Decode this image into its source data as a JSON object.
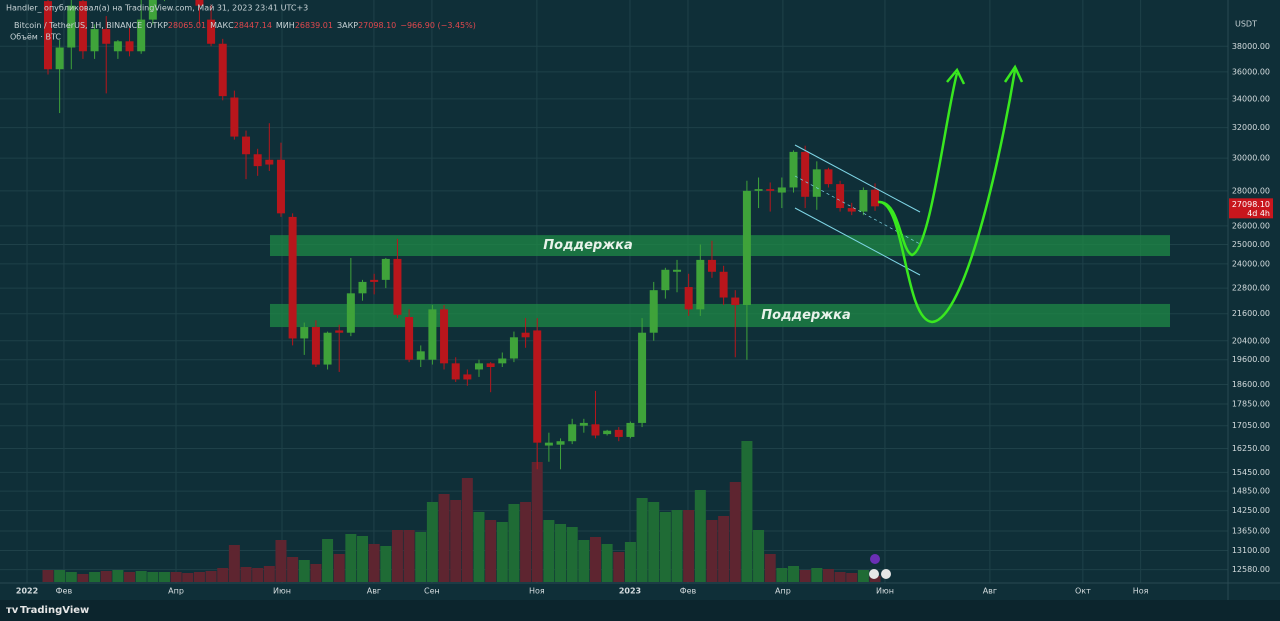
{
  "header": {
    "publisher": "Handler_ опубликовал(а) на TradingView.com, Май 31, 2023 23:41 UTC+3",
    "brand": "TradingView"
  },
  "chart_data": {
    "type": "candlestick",
    "symbol": "Bitcoin / TetherUS, 1Н, BINANCE",
    "ohlc_labels": [
      "ОТКР",
      "МАКС",
      "МИН",
      "ЗАКР"
    ],
    "change": "−966.90 (−3.45%)",
    "volume_label": "Объём · BTC",
    "currency": "USDT",
    "last_close_label": "27098.10",
    "countdown": "4d 4h",
    "log_scale": true,
    "grid": true,
    "up_color": "#3fa33a",
    "down_color": "#b8161c",
    "volume_up_color": "#1f6b35",
    "volume_down_color": "#5e2530",
    "zone_color": "#1f8a46",
    "categories": [
      null,
      null,
      null,
      null,
      null,
      null,
      null,
      null,
      null,
      null,
      null,
      null,
      null,
      null,
      null,
      null,
      null,
      null,
      null,
      null,
      null,
      null,
      null,
      null,
      null,
      null,
      null,
      null,
      null,
      null,
      null,
      null,
      null,
      null,
      null,
      null,
      null,
      null,
      null,
      null,
      null,
      null,
      null,
      null,
      null,
      null,
      null,
      null,
      null,
      null,
      null,
      null,
      null,
      null,
      null,
      null,
      null,
      null,
      null,
      null,
      null,
      null,
      null,
      null,
      null,
      null,
      null,
      null,
      null,
      null,
      null,
      null
    ],
    "open": [
      41800,
      36200,
      37900,
      41800,
      37600,
      39400,
      37600,
      38400,
      37600,
      40200,
      42200,
      46800,
      45600,
      42100,
      40200,
      38200,
      34100,
      31400,
      30250,
      29900,
      29900,
      26500,
      20500,
      21000,
      19400,
      20850,
      20750,
      22550,
      23200,
      23200,
      24250,
      21450,
      19600,
      19600,
      21800,
      19450,
      19000,
      19200,
      19450,
      19450,
      19650,
      20750,
      20850,
      16350,
      16380,
      16500,
      17050,
      17100,
      16750,
      16900,
      16650,
      17150,
      20750,
      22700,
      23600,
      22850,
      21800,
      24200,
      23600,
      22350,
      22000,
      28000,
      28100,
      27900,
      28200,
      30400,
      27650,
      29300,
      28400,
      27000,
      26800,
      28065.01
    ],
    "high": [
      41900,
      38500,
      41900,
      41900,
      39800,
      40500,
      38500,
      39500,
      41900,
      42800,
      47500,
      48000,
      46000,
      43000,
      41500,
      38600,
      34600,
      31800,
      30600,
      32300,
      31000,
      26700,
      21200,
      21300,
      20800,
      21100,
      24300,
      23200,
      23500,
      24300,
      25300,
      21800,
      20200,
      22000,
      22000,
      19700,
      19200,
      19600,
      19500,
      19900,
      20800,
      21400,
      21400,
      16800,
      16600,
      17300,
      17300,
      18350,
      16900,
      17000,
      17200,
      21400,
      23100,
      23800,
      24200,
      23500,
      25000,
      25200,
      23900,
      22700,
      28600,
      28800,
      28500,
      28800,
      30500,
      30800,
      29800,
      29400,
      28600,
      27300,
      28200,
      28447.14
    ],
    "low": [
      35800,
      33000,
      36200,
      37000,
      37000,
      34400,
      37000,
      37200,
      37400,
      39800,
      41800,
      45000,
      42000,
      39800,
      38000,
      33900,
      31200,
      28700,
      28900,
      29200,
      26500,
      20200,
      19800,
      19300,
      19200,
      19100,
      20600,
      22200,
      22500,
      22800,
      21400,
      19500,
      19300,
      19400,
      19200,
      18700,
      18550,
      18900,
      18300,
      19300,
      19500,
      20100,
      15550,
      15800,
      15550,
      16400,
      16800,
      16600,
      16700,
      16500,
      16600,
      17000,
      20400,
      22300,
      22600,
      21500,
      21500,
      23300,
      22000,
      19700,
      19600,
      27000,
      26800,
      27000,
      27900,
      27000,
      26900,
      28200,
      26800,
      26600,
      26600,
      26839.01
    ],
    "close": [
      36200,
      37900,
      41400,
      37600,
      39400,
      38200,
      38400,
      37600,
      40200,
      42200,
      46800,
      45600,
      42100,
      41400,
      38200,
      34200,
      31400,
      30250,
      29500,
      29600,
      26700,
      20500,
      21000,
      19400,
      20750,
      20750,
      22550,
      23100,
      23100,
      24250,
      21550,
      19600,
      19950,
      21800,
      19450,
      18800,
      18800,
      19450,
      19300,
      19650,
      20550,
      20550,
      16450,
      16450,
      16500,
      17100,
      17150,
      16700,
      16870,
      16650,
      17150,
      20750,
      22700,
      23700,
      23700,
      21800,
      24200,
      23600,
      22350,
      22000,
      28000,
      28100,
      28000,
      28200,
      30400,
      27650,
      29300,
      28400,
      27000,
      26800,
      28050,
      27098.1
    ],
    "volume": [
      120000,
      120000,
      100000,
      80000,
      100000,
      110000,
      120000,
      100000,
      110000,
      100000,
      100000,
      100000,
      90000,
      100000,
      110000,
      140000,
      370000,
      150000,
      140000,
      160000,
      420000,
      250000,
      220000,
      180000,
      430000,
      280000,
      480000,
      460000,
      380000,
      360000,
      520000,
      520000,
      500000,
      800000,
      880000,
      820000,
      1040000,
      700000,
      620000,
      600000,
      780000,
      800000,
      1200000,
      620000,
      580000,
      550000,
      420000,
      450000,
      380000,
      300000,
      400000,
      840000,
      800000,
      700000,
      720000,
      720000,
      920000,
      620000,
      660000,
      1000000,
      1410000,
      520000,
      280000,
      140000,
      160000,
      120000,
      140000,
      130000,
      100000,
      90000,
      120000,
      60000
    ],
    "zones": [
      {
        "label": "Поддержка",
        "range": [
          24400,
          25500
        ]
      },
      {
        "label": "Поддержка",
        "range": [
          21000,
          22050
        ]
      }
    ],
    "ylim": [
      12230,
      41900
    ],
    "yticks": [
      {
        "value": 38000,
        "label": "38000.00"
      },
      {
        "value": 36000,
        "label": "36000.00"
      },
      {
        "value": 34000,
        "label": "34000.00"
      },
      {
        "value": 32000,
        "label": "32000.00"
      },
      {
        "value": 30000,
        "label": "30000.00"
      },
      {
        "value": 28000,
        "label": "28000.00"
      },
      {
        "value": 26000,
        "label": "26000.00"
      },
      {
        "value": 25000,
        "label": "25000.00"
      },
      {
        "value": 24000,
        "label": "24000.00"
      },
      {
        "value": 22800,
        "label": "22800.00"
      },
      {
        "value": 21600,
        "label": "21600.00"
      },
      {
        "value": 20400,
        "label": "20400.00"
      },
      {
        "value": 19600,
        "label": "19600.00"
      },
      {
        "value": 18600,
        "label": "18600.00"
      },
      {
        "value": 17850,
        "label": "17850.00"
      },
      {
        "value": 17050,
        "label": "17050.00"
      },
      {
        "value": 16250,
        "label": "16250.00"
      },
      {
        "value": 15450,
        "label": "15450.00"
      },
      {
        "value": 14850,
        "label": "14850.00"
      },
      {
        "value": 14250,
        "label": "14250.00"
      },
      {
        "value": 13650,
        "label": "13650.00"
      },
      {
        "value": 13100,
        "label": "13100.00"
      },
      {
        "value": 12580,
        "label": "12580.00"
      }
    ],
    "xlim": [
      -4.12,
      101.3
    ],
    "xticks": [
      {
        "value": -1.8,
        "label": "2022"
      },
      {
        "value": 1.37,
        "label": "Фев"
      },
      {
        "value": 10.99,
        "label": "Апр"
      },
      {
        "value": 20.09,
        "label": "Июн"
      },
      {
        "value": 27.98,
        "label": "Авг"
      },
      {
        "value": 32.96,
        "label": "Сен"
      },
      {
        "value": 41.97,
        "label": "Ноя"
      },
      {
        "value": 49.96,
        "label": "2023"
      },
      {
        "value": 54.94,
        "label": "Фев"
      },
      {
        "value": 63.09,
        "label": "Апр"
      },
      {
        "value": 71.85,
        "label": "Июн"
      },
      {
        "value": 80.86,
        "label": "Авг"
      },
      {
        "value": 88.84,
        "label": "Окт"
      },
      {
        "value": 93.8,
        "label": "Ноя"
      }
    ]
  }
}
